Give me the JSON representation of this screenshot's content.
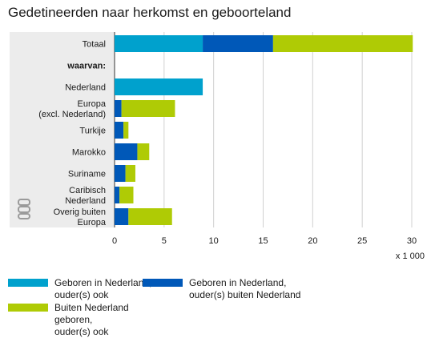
{
  "title": "Gedetineerden naar herkomst en geboorteland",
  "chart_data": {
    "type": "bar",
    "orientation": "horizontal",
    "stacked": true,
    "categories": [
      "Totaal",
      "waarvan:",
      "Nederland",
      "Europa\n(excl. Nederland)",
      "Turkije",
      "Marokko",
      "Suriname",
      "Caribisch\nNederland",
      "Overig buiten\nEuropa"
    ],
    "series": [
      {
        "name": "Geboren in Nederland, ouder(s) ook",
        "color": "#00a1cd",
        "values": [
          8.9,
          null,
          8.9,
          0,
          0,
          0,
          0,
          0,
          0
        ]
      },
      {
        "name": "Geboren in Nederland, ouder(s) buiten Nederland",
        "color": "#0058b8",
        "values": [
          7.1,
          null,
          0,
          0.7,
          0.9,
          2.3,
          1.1,
          0.5,
          1.4
        ]
      },
      {
        "name": "Buiten Nederland geboren, ouder(s) ook",
        "color": "#afcb05",
        "values": [
          14.1,
          null,
          0,
          5.4,
          0.5,
          1.2,
          1.0,
          1.4,
          4.4
        ]
      }
    ],
    "xlim": [
      0,
      30
    ],
    "xticks": [
      0,
      5,
      10,
      15,
      20,
      25,
      30
    ],
    "xunit": "x 1 000",
    "grid": true,
    "legend_position": "bottom"
  },
  "legend": [
    {
      "line1": "Geboren in Nederland,",
      "line2": "ouder(s) ook",
      "color": "#00a1cd"
    },
    {
      "line1": "Geboren in Nederland,",
      "line2": "ouder(s) buiten Nederland",
      "color": "#0058b8"
    },
    {
      "line1": "Buiten Nederland geboren,",
      "line2": "ouder(s) ook",
      "color": "#afcb05"
    }
  ],
  "logo_text": "cbs"
}
